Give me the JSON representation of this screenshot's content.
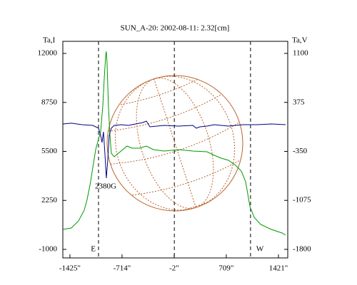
{
  "chart_data": {
    "type": "line",
    "title": "SUN_A-20: 2002-08-11: 2.32[cm]",
    "y_label": "Ta,I",
    "y2_label": "Ta,V",
    "xlim": [
      -1522,
      1548
    ],
    "xticks": [
      {
        "value": -1425,
        "label": "-1425\""
      },
      {
        "value": -714,
        "label": "-714\""
      },
      {
        "value": -2,
        "label": "-2\""
      },
      {
        "value": 709,
        "label": "709\""
      },
      {
        "value": 1421,
        "label": "1421\""
      }
    ],
    "ylim": [
      -1567,
      12803
    ],
    "yticks": [
      12000,
      8750,
      5500,
      2250,
      -1000
    ],
    "y2lim": [
      -1927,
      1279
    ],
    "y2ticks": [
      1100,
      375,
      -350,
      -1075,
      -1800
    ],
    "vlines": [
      {
        "x": -1035,
        "label": "E"
      },
      {
        "x": 0
      },
      {
        "x": 1040,
        "label": "W"
      }
    ],
    "annotations": [
      {
        "text": "2380G",
        "x": -938,
        "y": 3160
      }
    ],
    "series": [
      {
        "name": "Ta,I",
        "color": "#009900",
        "x": [
          -1522,
          -1406,
          -1308,
          -1230,
          -1191,
          -1152,
          -1113,
          -1074,
          -1035,
          -1006,
          -977,
          -957,
          -938,
          -928,
          -918,
          -899,
          -879,
          -860,
          -821,
          -762,
          -704,
          -645,
          -577,
          -480,
          -382,
          -285,
          -138,
          57,
          252,
          446,
          544,
          641,
          739,
          836,
          914,
          973,
          1032,
          1090,
          1178,
          1324,
          1470,
          1519
        ],
        "values": [
          324,
          418,
          891,
          1600,
          2309,
          3254,
          4436,
          5618,
          6327,
          6800,
          8454,
          10345,
          11763,
          12141,
          11290,
          8454,
          6563,
          5381,
          5145,
          5381,
          5618,
          5854,
          5712,
          5712,
          5854,
          5618,
          5523,
          5618,
          5523,
          5476,
          5240,
          5051,
          4909,
          4578,
          4200,
          3491,
          1836,
          1127,
          654,
          324,
          87,
          -55
        ]
      },
      {
        "name": "Ta,V",
        "color": "#000080",
        "axis": "y2",
        "x": [
          -1522,
          -1406,
          -1259,
          -1113,
          -1035,
          -1006,
          -987,
          -967,
          -948,
          -928,
          -909,
          -889,
          -860,
          -821,
          -723,
          -626,
          -431,
          -382,
          -333,
          -138,
          57,
          252,
          300,
          349,
          446,
          544,
          739,
          933,
          1129,
          1324,
          1519
        ],
        "values": [
          56,
          67,
          45,
          35,
          -7,
          -113,
          -218,
          -60,
          -376,
          -746,
          -482,
          -113,
          -7,
          35,
          45,
          35,
          77,
          98,
          14,
          35,
          24,
          35,
          -7,
          14,
          24,
          45,
          24,
          45,
          45,
          56,
          45
        ]
      }
    ]
  }
}
